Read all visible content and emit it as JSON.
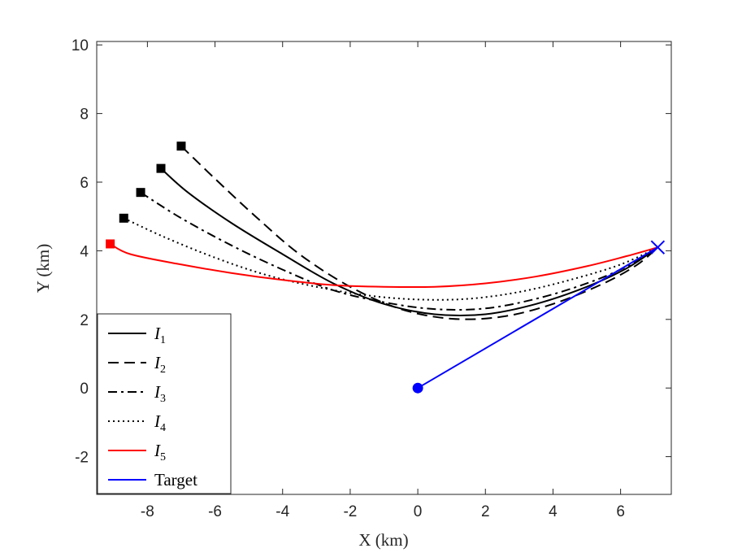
{
  "chart_data": {
    "type": "line",
    "title": "",
    "xlabel": "X (km)",
    "ylabel": "Y (km)",
    "xlim": [
      -9.5,
      7.5
    ],
    "ylim": [
      -3.1,
      10.1
    ],
    "xticks": [
      -8,
      -6,
      -4,
      -2,
      0,
      2,
      4,
      6
    ],
    "xtick_labels": [
      "-8",
      "-6",
      "-4",
      "-2",
      "0",
      "2",
      "4",
      "6"
    ],
    "yticks": [
      -2,
      0,
      2,
      4,
      6,
      8,
      10
    ],
    "ytick_labels": [
      "-2",
      "0",
      "2",
      "4",
      "6",
      "8",
      "10"
    ],
    "grid": false,
    "legend_position": "bottom-left",
    "colors": {
      "black": "#000000",
      "red": "#ff0000",
      "blue": "#0000ff",
      "axis": "#262626"
    },
    "series": [
      {
        "name": "I",
        "subscript": "1",
        "style": "solid",
        "color": "#000000",
        "start_marker": "square",
        "points": [
          [
            -7.6,
            6.4
          ],
          [
            -6.8,
            5.7
          ],
          [
            -5.5,
            4.8
          ],
          [
            -4.0,
            3.9
          ],
          [
            -2.5,
            3.05
          ],
          [
            -1.0,
            2.45
          ],
          [
            0.5,
            2.15
          ],
          [
            2.0,
            2.15
          ],
          [
            3.5,
            2.45
          ],
          [
            5.0,
            2.95
          ],
          [
            6.2,
            3.5
          ],
          [
            7.1,
            4.1
          ]
        ]
      },
      {
        "name": "I",
        "subscript": "2",
        "style": "dashed",
        "color": "#000000",
        "start_marker": "square",
        "points": [
          [
            -7.0,
            7.05
          ],
          [
            -6.0,
            6.1
          ],
          [
            -4.8,
            5.0
          ],
          [
            -3.5,
            3.9
          ],
          [
            -2.0,
            2.95
          ],
          [
            -0.5,
            2.3
          ],
          [
            1.0,
            2.02
          ],
          [
            2.5,
            2.08
          ],
          [
            4.0,
            2.45
          ],
          [
            5.5,
            3.05
          ],
          [
            6.5,
            3.6
          ],
          [
            7.1,
            4.1
          ]
        ]
      },
      {
        "name": "I",
        "subscript": "3",
        "style": "dashdot",
        "color": "#000000",
        "start_marker": "square",
        "points": [
          [
            -8.2,
            5.7
          ],
          [
            -7.0,
            4.95
          ],
          [
            -5.5,
            4.15
          ],
          [
            -4.0,
            3.45
          ],
          [
            -2.5,
            2.85
          ],
          [
            -1.0,
            2.5
          ],
          [
            0.5,
            2.3
          ],
          [
            2.0,
            2.32
          ],
          [
            3.5,
            2.6
          ],
          [
            5.0,
            3.05
          ],
          [
            6.2,
            3.55
          ],
          [
            7.1,
            4.1
          ]
        ]
      },
      {
        "name": "I",
        "subscript": "4",
        "style": "dotted",
        "color": "#000000",
        "start_marker": "square",
        "points": [
          [
            -8.7,
            4.95
          ],
          [
            -7.5,
            4.4
          ],
          [
            -6.0,
            3.8
          ],
          [
            -4.5,
            3.3
          ],
          [
            -3.0,
            2.95
          ],
          [
            -1.5,
            2.7
          ],
          [
            0.0,
            2.58
          ],
          [
            1.5,
            2.6
          ],
          [
            3.0,
            2.8
          ],
          [
            4.5,
            3.15
          ],
          [
            6.0,
            3.6
          ],
          [
            7.1,
            4.1
          ]
        ]
      },
      {
        "name": "I",
        "subscript": "5",
        "style": "solid",
        "color": "#ff0000",
        "start_marker": "square",
        "points": [
          [
            -9.1,
            4.2
          ],
          [
            -8.5,
            3.9
          ],
          [
            -7.0,
            3.6
          ],
          [
            -5.5,
            3.35
          ],
          [
            -4.0,
            3.15
          ],
          [
            -2.5,
            3.0
          ],
          [
            -1.0,
            2.95
          ],
          [
            0.5,
            2.95
          ],
          [
            2.0,
            3.05
          ],
          [
            3.5,
            3.25
          ],
          [
            5.0,
            3.55
          ],
          [
            6.2,
            3.85
          ],
          [
            7.1,
            4.1
          ]
        ]
      },
      {
        "name": "Target",
        "subscript": "",
        "style": "solid",
        "color": "#0000ff",
        "start_marker": "circle",
        "end_marker": "cross",
        "points": [
          [
            0.0,
            0.0
          ],
          [
            7.1,
            4.1
          ]
        ]
      }
    ]
  }
}
